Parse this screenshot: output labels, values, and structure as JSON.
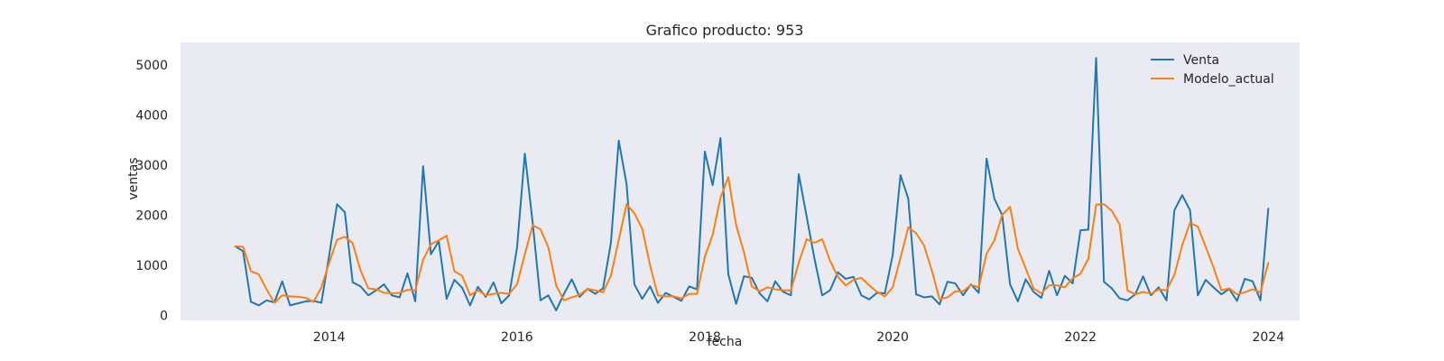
{
  "chart_data": {
    "type": "line",
    "title": "Grafico producto: 953",
    "xlabel": "fecha",
    "ylabel": "ventas",
    "x_start": "2013-01",
    "x_freq": "monthly",
    "xlim": [
      "2012-06",
      "2024-05"
    ],
    "ylim": [
      -100,
      5450
    ],
    "x_ticks": [
      "2014",
      "2016",
      "2018",
      "2020",
      "2022",
      "2024"
    ],
    "y_ticks": [
      0,
      1000,
      2000,
      3000,
      4000,
      5000
    ],
    "grid": false,
    "legend_position": "top-right",
    "series": [
      {
        "name": "Venta",
        "color": "#1f77b4",
        "values": [
          1380,
          1280,
          270,
          200,
          300,
          260,
          680,
          200,
          240,
          280,
          290,
          250,
          1200,
          2220,
          2060,
          660,
          580,
          400,
          500,
          620,
          400,
          360,
          840,
          280,
          2980,
          1220,
          1480,
          330,
          710,
          550,
          200,
          570,
          370,
          660,
          240,
          400,
          1350,
          3230,
          1850,
          300,
          400,
          100,
          430,
          720,
          370,
          530,
          430,
          540,
          1450,
          3490,
          2620,
          620,
          330,
          580,
          250,
          450,
          370,
          290,
          580,
          520,
          3270,
          2600,
          3540,
          820,
          230,
          780,
          750,
          440,
          280,
          680,
          470,
          400,
          2820,
          1980,
          1140,
          400,
          500,
          860,
          730,
          770,
          400,
          320,
          450,
          440,
          1200,
          2800,
          2330,
          420,
          360,
          380,
          220,
          670,
          640,
          400,
          620,
          450,
          3130,
          2330,
          2000,
          620,
          280,
          720,
          470,
          350,
          890,
          400,
          790,
          640,
          1700,
          1710,
          5140,
          670,
          540,
          340,
          300,
          420,
          780,
          400,
          560,
          300,
          2100,
          2400,
          2100,
          400,
          710,
          560,
          420,
          530,
          290,
          730,
          680,
          300,
          2130
        ]
      },
      {
        "name": "Modelo_actual",
        "color": "#ff7f0e",
        "values": [
          1380,
          1370,
          880,
          820,
          520,
          250,
          400,
          380,
          370,
          350,
          270,
          560,
          1050,
          1510,
          1570,
          1440,
          900,
          540,
          520,
          450,
          440,
          450,
          510,
          500,
          1110,
          1420,
          1500,
          1590,
          880,
          790,
          400,
          500,
          400,
          430,
          450,
          430,
          620,
          1220,
          1800,
          1720,
          1360,
          600,
          300,
          360,
          410,
          530,
          500,
          460,
          790,
          1510,
          2220,
          2040,
          1730,
          1000,
          400,
          380,
          380,
          340,
          430,
          430,
          1170,
          1610,
          2350,
          2760,
          1800,
          1260,
          580,
          480,
          560,
          520,
          500,
          500,
          1050,
          1520,
          1450,
          1520,
          1090,
          770,
          600,
          710,
          750,
          600,
          470,
          380,
          560,
          1150,
          1760,
          1640,
          1400,
          900,
          320,
          360,
          480,
          480,
          610,
          560,
          1230,
          1500,
          2010,
          2170,
          1330,
          940,
          540,
          440,
          600,
          600,
          560,
          740,
          830,
          1130,
          2210,
          2220,
          2090,
          1820,
          500,
          420,
          470,
          430,
          520,
          500,
          810,
          1400,
          1850,
          1770,
          1370,
          960,
          500,
          540,
          420,
          460,
          520,
          460,
          1050
        ]
      }
    ]
  }
}
